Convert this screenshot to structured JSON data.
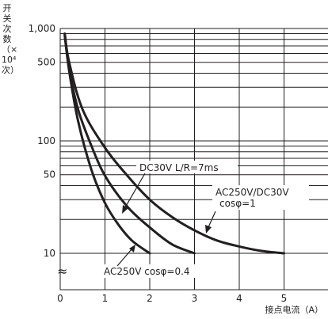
{
  "chart_data": {
    "type": "line",
    "xlabel": "接点电流（A）",
    "ylabel_lines": [
      "开",
      "关",
      "次",
      "数",
      "（×",
      "10⁴",
      "次）"
    ],
    "x_ticks": [
      "0",
      "1",
      "2",
      "3",
      "4",
      "5"
    ],
    "y_ticks": [
      "1,000",
      "500",
      "100",
      "50",
      "10"
    ],
    "xlim": [
      0,
      6
    ],
    "ylim": [
      10,
      1000
    ],
    "y_scale": "log",
    "grid": true,
    "series": [
      {
        "name": "DC30V  L/R=7ms",
        "x": [
          0.1,
          0.2,
          0.4,
          0.7,
          1.0,
          1.5,
          2.0,
          2.5,
          3.0
        ],
        "y": [
          900,
          440,
          190,
          90,
          49,
          26,
          17,
          12,
          10
        ]
      },
      {
        "name": "AC250V/DC30V cosφ=1",
        "x": [
          0.1,
          0.2,
          0.5,
          1.0,
          1.5,
          2.0,
          2.5,
          3.0,
          3.5,
          4.0,
          4.5,
          5.0
        ],
        "y": [
          900,
          500,
          190,
          87,
          49,
          30,
          21,
          16,
          13,
          11.5,
          10.5,
          10
        ]
      },
      {
        "name": "AC250V  cosφ=0.4",
        "x": [
          0.1,
          0.2,
          0.4,
          0.7,
          1.0,
          1.3,
          1.6,
          2.0
        ],
        "y": [
          870,
          420,
          150,
          55,
          28,
          18,
          13,
          10
        ]
      }
    ],
    "annotations": [
      {
        "text": "DC30V  L/R=7ms"
      },
      {
        "text": "AC250V/DC30V"
      },
      {
        "text": "cosφ=1"
      },
      {
        "text": "AC250V  cosφ=0.4"
      }
    ],
    "axis_break_symbol": "≈"
  }
}
